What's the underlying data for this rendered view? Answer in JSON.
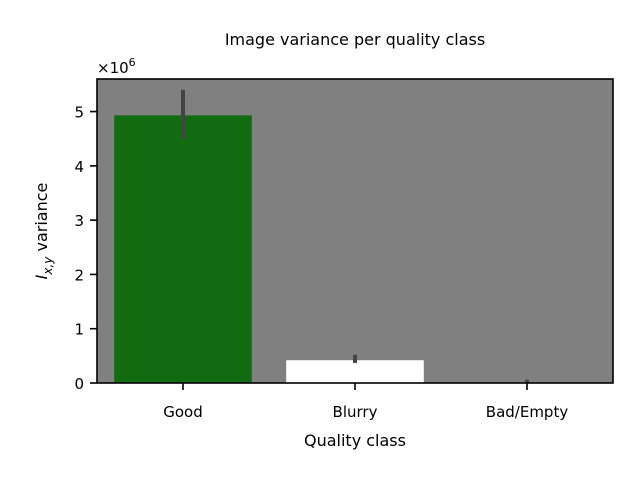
{
  "chart_data": {
    "type": "bar",
    "title": "Image variance per quality class",
    "xlabel": "Quality class",
    "ylabel": {
      "symbol": "I",
      "subscript": "x,y",
      "text": " variance"
    },
    "offset_text": {
      "base": "×10",
      "exponent": "6"
    },
    "scale": 1000000,
    "categories": [
      "Good",
      "Blurry",
      "Bad/Empty"
    ],
    "values": [
      4930000,
      420000,
      0
    ],
    "error_low": [
      4500000,
      370000,
      0
    ],
    "error_high": [
      5400000,
      520000,
      60000
    ],
    "colors": [
      "#116b11",
      "#ffffff",
      "#808080"
    ],
    "error_color": "#444444",
    "background_color": "#808080",
    "ylim": [
      0,
      5600000
    ],
    "yticks": [
      0,
      1000000,
      2000000,
      3000000,
      4000000,
      5000000
    ],
    "ytick_labels": [
      "0",
      "1",
      "2",
      "3",
      "4",
      "5"
    ],
    "grid": false,
    "legend": "none"
  }
}
